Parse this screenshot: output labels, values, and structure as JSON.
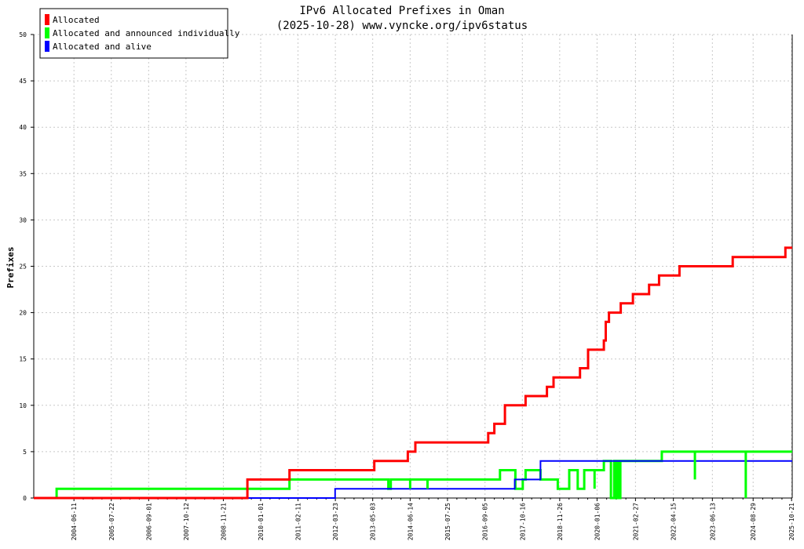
{
  "chart_data": {
    "type": "line",
    "title": "IPv6 Allocated Prefixes in Oman",
    "subtitle": "(2025-10-28) www.vyncke.org/ipv6status",
    "ylabel": "Prefixes",
    "xlabel": "",
    "ylim": [
      0,
      50
    ],
    "yticks": [
      0,
      5,
      10,
      15,
      20,
      25,
      30,
      35,
      40,
      45,
      50
    ],
    "xlim": [
      "2003-04-01",
      "2025-10-28"
    ],
    "xticks": [
      "2004-06-11",
      "2005-07-22",
      "2006-09-01",
      "2007-10-12",
      "2008-11-21",
      "2010-01-01",
      "2011-02-11",
      "2012-03-23",
      "2013-05-03",
      "2014-06-14",
      "2015-07-25",
      "2016-09-05",
      "2017-10-16",
      "2018-11-26",
      "2020-01-06",
      "2021-02-27",
      "2022-04-15",
      "2023-06-13",
      "2024-08-29",
      "2025-10-21"
    ],
    "grid": true,
    "legend_position": "top-left",
    "series": [
      {
        "name": "Allocated",
        "color": "#ff0000",
        "style": "step",
        "points": [
          [
            "2003-04-01",
            0
          ],
          [
            "2009-08-10",
            2
          ],
          [
            "2010-11-10",
            3
          ],
          [
            "2012-11-01",
            3
          ],
          [
            "2013-05-20",
            4
          ],
          [
            "2014-05-20",
            5
          ],
          [
            "2014-08-10",
            6
          ],
          [
            "2016-06-01",
            6
          ],
          [
            "2016-10-10",
            7
          ],
          [
            "2016-12-15",
            8
          ],
          [
            "2017-04-10",
            10
          ],
          [
            "2017-11-20",
            11
          ],
          [
            "2018-07-10",
            12
          ],
          [
            "2018-09-20",
            13
          ],
          [
            "2019-07-05",
            14
          ],
          [
            "2019-10-01",
            16
          ],
          [
            "2020-03-20",
            17
          ],
          [
            "2020-04-10",
            19
          ],
          [
            "2020-05-15",
            20
          ],
          [
            "2020-09-20",
            21
          ],
          [
            "2021-01-30",
            22
          ],
          [
            "2021-07-25",
            23
          ],
          [
            "2021-11-10",
            24
          ],
          [
            "2022-06-20",
            25
          ],
          [
            "2024-01-20",
            26
          ],
          [
            "2025-08-15",
            27
          ],
          [
            "2025-10-28",
            27
          ]
        ]
      },
      {
        "name": "Allocated and announced individually",
        "color": "#00ff00",
        "style": "step",
        "points": [
          [
            "2003-04-01",
            0
          ],
          [
            "2003-12-05",
            1
          ],
          [
            "2010-11-10",
            2
          ],
          [
            "2013-10-20",
            1
          ],
          [
            "2013-11-15",
            2
          ],
          [
            "2017-02-15",
            3
          ],
          [
            "2017-08-01",
            1
          ],
          [
            "2017-10-20",
            2
          ],
          [
            "2017-11-20",
            3
          ],
          [
            "2018-05-01",
            2
          ],
          [
            "2018-11-05",
            1
          ],
          [
            "2019-03-10",
            3
          ],
          [
            "2019-06-10",
            1
          ],
          [
            "2019-08-20",
            3
          ],
          [
            "2020-03-20",
            4
          ],
          [
            "2020-06-05",
            0
          ],
          [
            "2020-07-10",
            4
          ],
          [
            "2020-08-01",
            0
          ],
          [
            "2020-08-15",
            4
          ],
          [
            "2020-09-01",
            0
          ],
          [
            "2020-09-15",
            4
          ],
          [
            "2021-12-10",
            5
          ],
          [
            "2025-10-28",
            5
          ]
        ]
      },
      {
        "name": "Allocated and alive",
        "color": "#0000ff",
        "style": "step",
        "points": [
          [
            "2003-04-01",
            0
          ],
          [
            "2012-03-20",
            1
          ],
          [
            "2017-07-25",
            2
          ],
          [
            "2018-05-01",
            4
          ],
          [
            "2025-10-28",
            4
          ]
        ]
      }
    ],
    "spikes": [
      {
        "series": "Allocated and announced individually",
        "date": "2014-06-14",
        "from": 2,
        "to": 1
      },
      {
        "series": "Allocated and announced individually",
        "date": "2014-12-20",
        "from": 2,
        "to": 1
      },
      {
        "series": "Allocated and announced individually",
        "date": "2019-12-10",
        "from": 3,
        "to": 1
      },
      {
        "series": "Allocated and announced individually",
        "date": "2022-12-05",
        "from": 5,
        "to": 2
      },
      {
        "series": "Allocated and announced individually",
        "date": "2024-06-10",
        "from": 5,
        "to": 0
      }
    ]
  }
}
